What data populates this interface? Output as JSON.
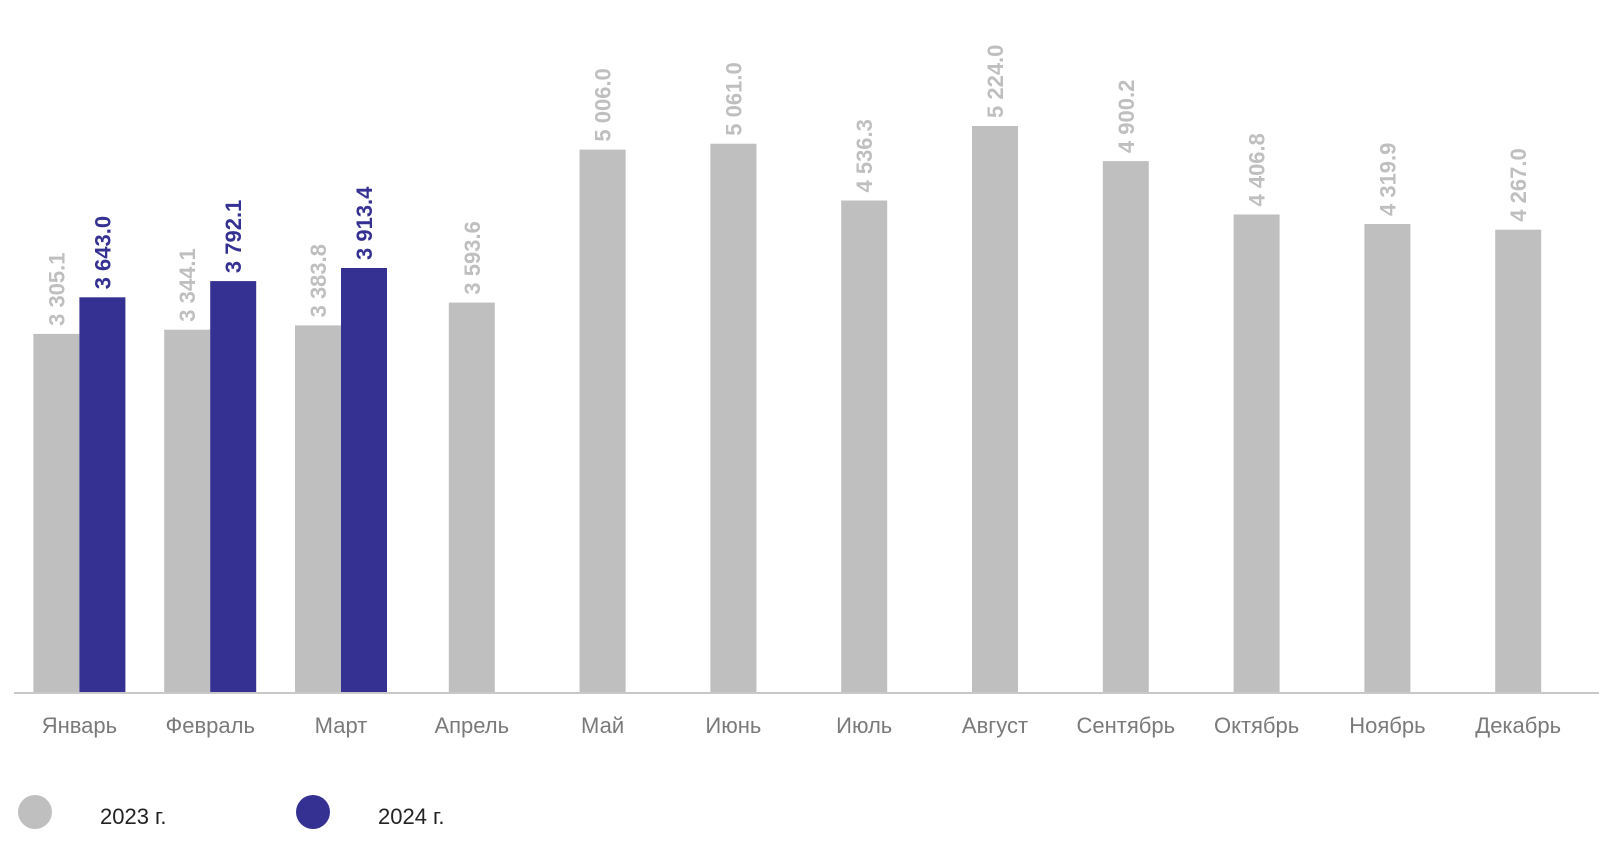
{
  "chart_data": {
    "type": "bar",
    "categories": [
      "Январь",
      "Февраль",
      "Март",
      "Апрель",
      "Май",
      "Июнь",
      "Июль",
      "Август",
      "Сентябрь",
      "Октябрь",
      "Ноябрь",
      "Декабрь"
    ],
    "series": [
      {
        "name": "2023 г.",
        "color": "#bfbfbf",
        "values": [
          3305.1,
          3344.1,
          3383.8,
          3593.6,
          5006.0,
          5061.0,
          4536.3,
          5224.0,
          4900.2,
          4406.8,
          4319.9,
          4267.0
        ],
        "labels": [
          "3 305.1",
          "3 344.1",
          "3 383.8",
          "3 593.6",
          "5 006.0",
          "5 061.0",
          "4 536.3",
          "5 224.0",
          "4 900.2",
          "4 406.8",
          "4 319.9",
          "4 267.0"
        ]
      },
      {
        "name": "2024 г.",
        "color": "#353192",
        "values": [
          3643.0,
          3792.1,
          3913.4,
          null,
          null,
          null,
          null,
          null,
          null,
          null,
          null,
          null
        ],
        "labels": [
          "3 643.0",
          "3 792.1",
          "3 913.4",
          null,
          null,
          null,
          null,
          null,
          null,
          null,
          null,
          null
        ]
      }
    ],
    "title": "",
    "xlabel": "",
    "ylabel": "",
    "ylim": [
      0,
      5224
    ],
    "grid": false,
    "legend_position": "bottom-left",
    "axis_color": "#c8c8c8"
  }
}
